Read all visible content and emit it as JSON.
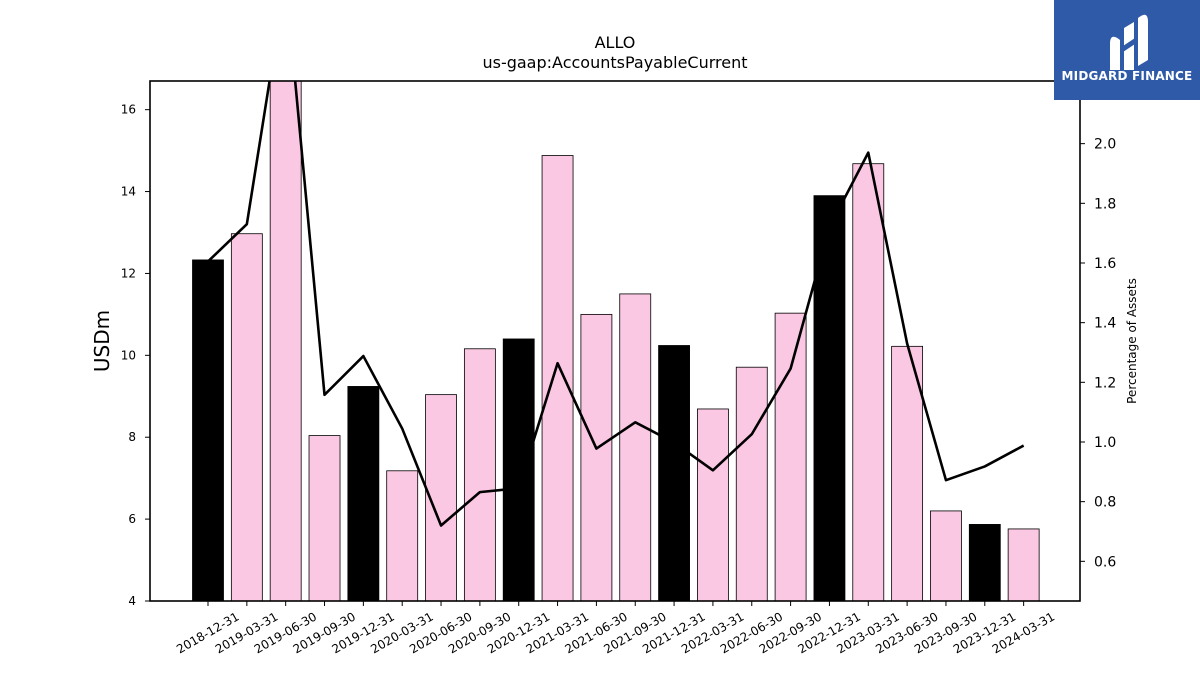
{
  "chart_data": {
    "type": "bar",
    "title": "ALLO",
    "subtitle": "us-gaap:AccountsPayableCurrent",
    "ylabel": "USDm",
    "y2label": "Percentage of Assets",
    "ylim": [
      4,
      16.7
    ],
    "y2lim": [
      0.467,
      2.21
    ],
    "yticks": [
      "4",
      "6",
      "8",
      "10",
      "12",
      "14",
      "16"
    ],
    "y2ticks": [
      "0.6",
      "0.8",
      "1.0",
      "1.2",
      "1.4",
      "1.6",
      "1.8",
      "2.0"
    ],
    "categories": [
      "2018-12-31",
      "2019-03-31",
      "2019-06-30",
      "2019-09-30",
      "2019-12-31",
      "2020-03-31",
      "2020-06-30",
      "2020-09-30",
      "2020-12-31",
      "2021-03-31",
      "2021-06-30",
      "2021-09-30",
      "2021-12-31",
      "2022-03-31",
      "2022-06-30",
      "2022-09-30",
      "2022-12-31",
      "2023-03-31",
      "2023-06-30",
      "2023-09-30",
      "2023-12-31",
      "2024-03-31"
    ],
    "series": [
      {
        "type": "bar",
        "values": [
          12.33,
          12.97,
          16.9,
          8.04,
          9.24,
          7.18,
          9.04,
          10.16,
          10.4,
          14.88,
          11.0,
          11.5,
          10.24,
          8.69,
          9.71,
          11.03,
          13.9,
          14.68,
          10.22,
          6.2,
          5.87,
          5.76
        ],
        "fourth_quarter_color": "#000000",
        "other_quarter_color": "#fbc8e3"
      },
      {
        "type": "line",
        "axis": "right",
        "values": [
          1.605,
          1.73,
          2.55,
          1.158,
          1.288,
          1.045,
          0.72,
          0.832,
          0.845,
          1.264,
          0.978,
          1.066,
          0.998,
          0.905,
          1.026,
          1.246,
          1.72,
          1.97,
          1.33,
          0.872,
          0.918,
          0.988
        ],
        "color": "#000000"
      }
    ],
    "grid": false,
    "legend": "none"
  },
  "logo": {
    "text": "MIDGARD FINANCE",
    "icon": "midgard-logo-icon",
    "background": "#2f5aa8"
  }
}
